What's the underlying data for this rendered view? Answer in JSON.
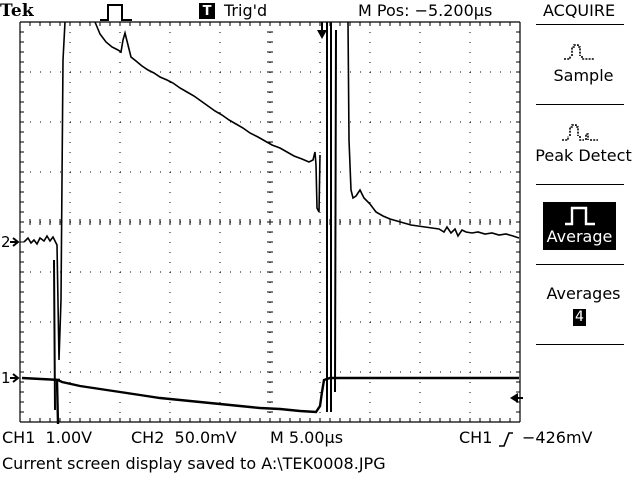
{
  "header": {
    "brand": "Tek",
    "trigger_marker": "T",
    "trigger_status": "Trig'd",
    "horizontal_position": "M Pos: −5.200µs",
    "pulse_icon": "pulse-icon",
    "trigger_position_icon": "trigger-position-arrow-icon"
  },
  "menu": {
    "title": "ACQUIRE",
    "items": [
      {
        "label": "Sample",
        "icon": "sample-mode-icon"
      },
      {
        "label": "Peak Detect",
        "icon": "peak-detect-icon"
      },
      {
        "label": "Average",
        "icon": "average-mode-icon",
        "selected": true
      },
      {
        "label": "Averages",
        "value": "4"
      }
    ]
  },
  "channel_markers": {
    "ch1": "1",
    "ch2": "2",
    "trigger_level_icon": "trigger-level-arrow-icon"
  },
  "readouts": {
    "ch1": "CH1  1.00V",
    "ch2": "CH2  50.0mV",
    "timebase": "M 5.00µs",
    "trigger_source": "CH1",
    "trigger_slope_icon": "rising-edge-icon",
    "trigger_level": "−426mV"
  },
  "status_message": "Current screen display saved to A:\\TEK0008.JPG",
  "colors": {
    "background": "#ffffff",
    "foreground": "#000000"
  }
}
